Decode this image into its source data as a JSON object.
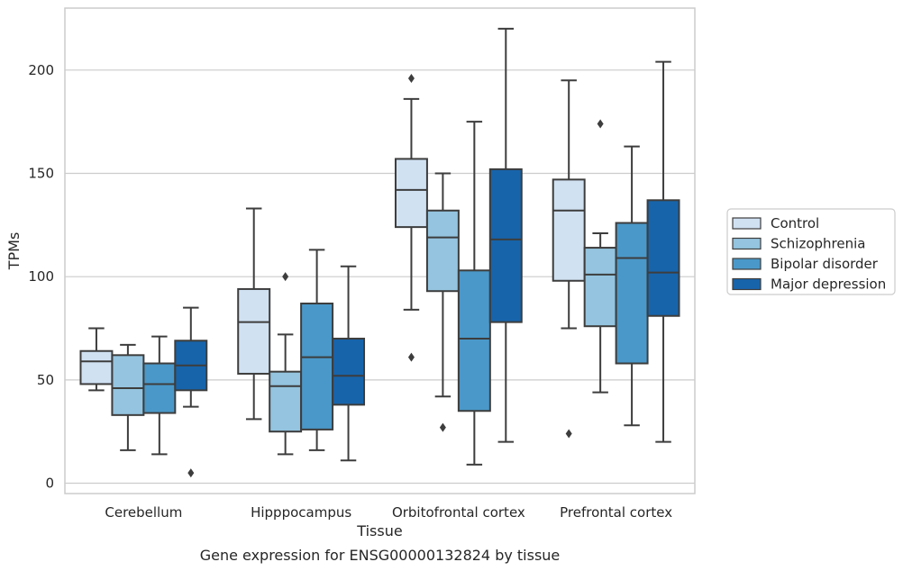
{
  "chart_data": {
    "type": "boxplot",
    "caption": "Gene expression for ENSG00000132824 by tissue",
    "xlabel": "Tissue",
    "ylabel": "TPMs",
    "ylim": [
      -5,
      230
    ],
    "yticks": [
      0,
      50,
      100,
      150,
      200
    ],
    "grid": true,
    "legend_position": "right",
    "categories": [
      "Cerebellum",
      "Hipppocampus",
      "Orbitofrontal cortex",
      "Prefrontal cortex"
    ],
    "series": [
      {
        "name": "Control",
        "color": "#d0e1f2",
        "boxes": [
          {
            "whisker_low": 45,
            "q1": 48,
            "median": 59,
            "q3": 64,
            "whisker_high": 75,
            "outliers": []
          },
          {
            "whisker_low": 31,
            "q1": 53,
            "median": 78,
            "q3": 94,
            "whisker_high": 133,
            "outliers": []
          },
          {
            "whisker_low": 84,
            "q1": 124,
            "median": 142,
            "q3": 157,
            "whisker_high": 186,
            "outliers": [
              196,
              61
            ]
          },
          {
            "whisker_low": 75,
            "q1": 98,
            "median": 132,
            "q3": 147,
            "whisker_high": 195,
            "outliers": [
              24
            ]
          }
        ]
      },
      {
        "name": "Schizophrenia",
        "color": "#94c4df",
        "boxes": [
          {
            "whisker_low": 16,
            "q1": 33,
            "median": 46,
            "q3": 62,
            "whisker_high": 67,
            "outliers": []
          },
          {
            "whisker_low": 14,
            "q1": 25,
            "median": 47,
            "q3": 54,
            "whisker_high": 72,
            "outliers": [
              100
            ]
          },
          {
            "whisker_low": 42,
            "q1": 93,
            "median": 119,
            "q3": 132,
            "whisker_high": 150,
            "outliers": [
              27
            ]
          },
          {
            "whisker_low": 44,
            "q1": 76,
            "median": 101,
            "q3": 114,
            "whisker_high": 121,
            "outliers": [
              174
            ]
          }
        ]
      },
      {
        "name": "Bipolar disorder",
        "color": "#4a98c9",
        "boxes": [
          {
            "whisker_low": 14,
            "q1": 34,
            "median": 48,
            "q3": 58,
            "whisker_high": 71,
            "outliers": []
          },
          {
            "whisker_low": 16,
            "q1": 26,
            "median": 61,
            "q3": 87,
            "whisker_high": 113,
            "outliers": []
          },
          {
            "whisker_low": 9,
            "q1": 35,
            "median": 70,
            "q3": 103,
            "whisker_high": 175,
            "outliers": []
          },
          {
            "whisker_low": 28,
            "q1": 58,
            "median": 109,
            "q3": 126,
            "whisker_high": 163,
            "outliers": []
          }
        ]
      },
      {
        "name": "Major depression",
        "color": "#1764ab",
        "boxes": [
          {
            "whisker_low": 37,
            "q1": 45,
            "median": 57,
            "q3": 69,
            "whisker_high": 85,
            "outliers": [
              5
            ]
          },
          {
            "whisker_low": 11,
            "q1": 38,
            "median": 52,
            "q3": 70,
            "whisker_high": 105,
            "outliers": []
          },
          {
            "whisker_low": 20,
            "q1": 78,
            "median": 118,
            "q3": 152,
            "whisker_high": 220,
            "outliers": []
          },
          {
            "whisker_low": 20,
            "q1": 81,
            "median": 102,
            "q3": 137,
            "whisker_high": 204,
            "outliers": []
          }
        ]
      }
    ]
  }
}
